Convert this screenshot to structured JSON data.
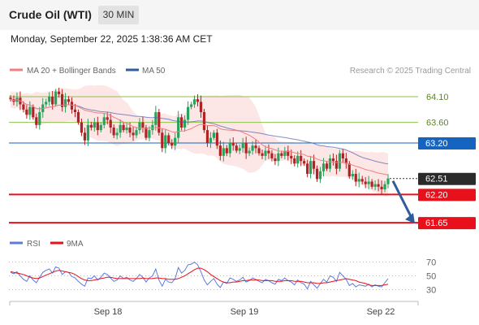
{
  "header": {
    "title": "Crude Oil (WTI)",
    "timeframe": "30 MIN"
  },
  "timestamp": "Monday, September 22, 2025 1:38:36 AM CET",
  "legend": {
    "bb_label": "MA 20 + Bollinger Bands",
    "ma50_label": "MA 50",
    "credit": "Research © 2025 Trading Central",
    "rsi_label": "RSI",
    "rsi_ma_label": "9MA"
  },
  "colors": {
    "resistance": "#8bc34a",
    "pivot": "#1565c0",
    "support": "#e8101a",
    "current": "#2b2b2b",
    "bb_fill": "#fde0e0",
    "ma20": "#f08080",
    "ma50": "#4a5fb0",
    "arrow": "#2f5d9c",
    "rsi": "#5b7be0",
    "rsi_ma": "#e8101a",
    "up_candle": "#27a35c",
    "down_candle": "#b22222"
  },
  "chart_data": [
    {
      "type": "candlestick",
      "x_ticks": [
        "Sep 18",
        "Sep 19",
        "Sep 22"
      ],
      "ylim": [
        61.4,
        64.4
      ],
      "current_price": "62.51",
      "levels": [
        {
          "value": 64.1,
          "label": "64.10",
          "kind": "resistance"
        },
        {
          "value": 63.6,
          "label": "63.60",
          "kind": "resistance"
        },
        {
          "value": 63.2,
          "label": "63.20",
          "kind": "pivot"
        },
        {
          "value": 62.2,
          "label": "62.20",
          "kind": "support"
        },
        {
          "value": 61.65,
          "label": "61.65",
          "kind": "support"
        }
      ],
      "close": [
        64.05,
        64.0,
        64.08,
        63.95,
        63.85,
        63.75,
        63.9,
        63.7,
        63.55,
        63.8,
        63.95,
        64.0,
        64.1,
        63.95,
        64.2,
        64.15,
        63.9,
        64.05,
        64.0,
        63.85,
        63.8,
        63.6,
        63.4,
        63.25,
        63.55,
        63.5,
        63.6,
        63.45,
        63.55,
        63.7,
        63.65,
        63.5,
        63.35,
        63.4,
        63.55,
        63.45,
        63.5,
        63.4,
        63.35,
        63.45,
        63.6,
        63.5,
        63.3,
        63.45,
        63.55,
        63.8,
        63.4,
        63.1,
        63.35,
        63.2,
        63.15,
        63.3,
        63.7,
        63.5,
        63.65,
        63.9,
        63.95,
        64.05,
        64.0,
        63.8,
        63.45,
        63.2,
        63.3,
        63.4,
        63.15,
        62.95,
        63.1,
        63.0,
        63.2,
        63.15,
        63.05,
        63.1,
        63.2,
        63.0,
        63.05,
        63.15,
        63.1,
        63.0,
        62.95,
        63.05,
        63.0,
        62.9,
        62.85,
        63.0,
        62.95,
        63.05,
        62.95,
        62.9,
        62.8,
        62.95,
        62.85,
        62.8,
        62.6,
        62.85,
        62.7,
        62.5,
        62.65,
        62.8,
        62.7,
        62.9,
        62.85,
        62.7,
        63.0,
        62.9,
        62.8,
        62.55,
        62.6,
        62.45,
        62.5,
        62.45,
        62.4,
        62.45,
        62.35,
        62.4,
        62.35,
        62.3,
        62.4,
        62.51
      ],
      "rsi_ylim": [
        20,
        80
      ],
      "rsi_levels": [
        70,
        50,
        30
      ],
      "rsi": [
        55,
        53,
        56,
        50,
        45,
        42,
        50,
        44,
        40,
        48,
        55,
        58,
        60,
        54,
        63,
        61,
        52,
        56,
        55,
        49,
        47,
        42,
        38,
        35,
        47,
        46,
        50,
        44,
        48,
        54,
        52,
        47,
        42,
        44,
        50,
        46,
        48,
        44,
        42,
        46,
        52,
        48,
        41,
        47,
        50,
        60,
        44,
        35,
        45,
        41,
        40,
        46,
        62,
        54,
        58,
        66,
        67,
        70,
        66,
        56,
        44,
        37,
        42,
        46,
        38,
        33,
        41,
        39,
        47,
        45,
        42,
        44,
        48,
        41,
        43,
        47,
        45,
        42,
        40,
        45,
        43,
        40,
        38,
        45,
        43,
        47,
        43,
        41,
        37,
        44,
        40,
        38,
        31,
        42,
        37,
        32,
        39,
        45,
        41,
        50,
        48,
        42,
        55,
        50,
        45,
        36,
        39,
        34,
        37,
        36,
        35,
        38,
        34,
        37,
        35,
        34,
        40,
        46
      ],
      "rsi_ma": [
        56,
        55,
        54,
        53,
        52,
        50,
        48,
        47,
        46,
        47,
        49,
        51,
        53,
        55,
        57,
        58,
        57,
        56,
        55,
        54,
        52,
        49,
        46,
        44,
        43,
        43,
        44,
        45,
        46,
        47,
        48,
        48,
        47,
        46,
        46,
        46,
        46,
        46,
        46,
        46,
        46,
        47,
        46,
        46,
        46,
        47,
        47,
        46,
        46,
        45,
        45,
        45,
        46,
        48,
        50,
        53,
        56,
        59,
        61,
        61,
        59,
        56,
        52,
        49,
        46,
        43,
        41,
        40,
        40,
        41,
        41,
        42,
        43,
        43,
        44,
        44,
        44,
        44,
        43,
        43,
        43,
        43,
        42,
        42,
        42,
        43,
        43,
        43,
        42,
        42,
        42,
        41,
        40,
        40,
        40,
        39,
        39,
        40,
        40,
        41,
        42,
        43,
        44,
        45,
        46,
        45,
        44,
        43,
        41,
        40,
        39,
        37,
        36,
        36,
        36,
        36,
        37,
        38
      ]
    }
  ]
}
